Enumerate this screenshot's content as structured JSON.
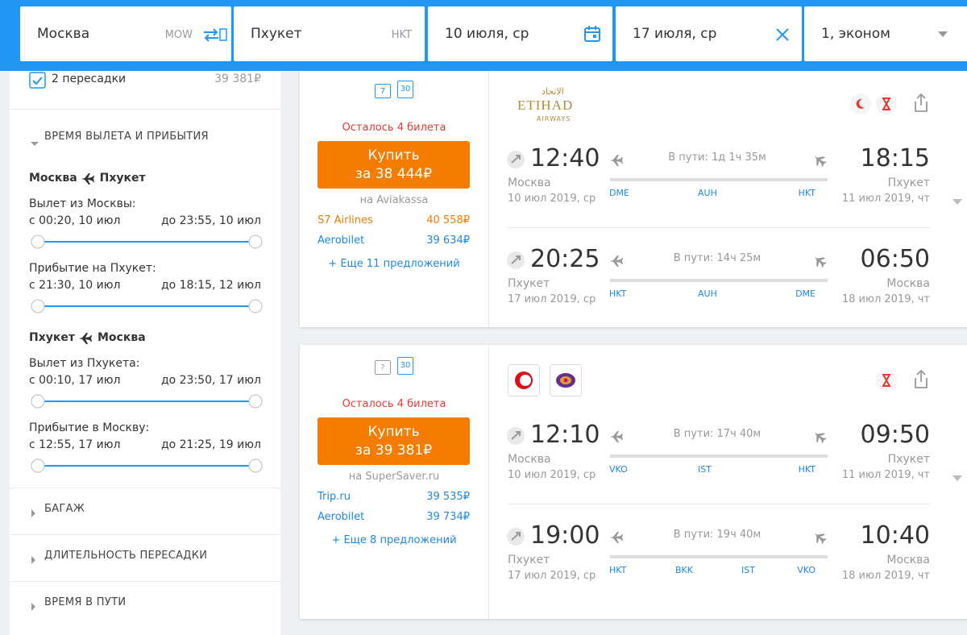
{
  "search": {
    "from": "Москва",
    "from_code": "MOW",
    "to": "Пхукет",
    "to_code": "HKT",
    "depart": "10 июля, ср",
    "return": "17 июля, ср",
    "passengers": "1, эконом"
  },
  "sidebar": {
    "stops": {
      "label": "2 пересадки",
      "price": "39 381₽"
    },
    "time_section": "ВРЕМЯ ВЫЛЕТА И ПРИБЫТИЯ",
    "legs": [
      {
        "from": "Москва",
        "to": "Пхукет",
        "groups": [
          {
            "label": "Вылет из Москвы:",
            "min": "с 00:20, 10 июл",
            "max": "до 23:55, 10 июл"
          },
          {
            "label": "Прибытие на Пхукет:",
            "min": "с 21:30, 10 июл",
            "max": "до 18:15, 12 июл"
          }
        ]
      },
      {
        "from": "Пхукет",
        "to": "Москва",
        "groups": [
          {
            "label": "Вылет из Пхукета:",
            "min": "с 00:10, 17 июл",
            "max": "до 23:50, 17 июл"
          },
          {
            "label": "Прибытие в Москву:",
            "min": "с 12:55, 17 июл",
            "max": "до 21:25, 19 июл"
          }
        ]
      }
    ],
    "sections": [
      "БАГАЖ",
      "ДЛИТЕЛЬНОСТЬ ПЕРЕСАДКИ",
      "ВРЕМЯ В ПУТИ"
    ]
  },
  "results": [
    {
      "baggage": [
        "7",
        "30"
      ],
      "tickets_left": "Осталось 4 билета",
      "buy": "Купить",
      "price": "за 38 444₽",
      "seller": "на Aviakassa",
      "offers": [
        {
          "name": "S7 Airlines",
          "price": "40 558₽",
          "color": "#f57c00"
        },
        {
          "name": "Aerobilet",
          "price": "39 634₽",
          "color": "#1e88e5"
        }
      ],
      "more": "+ Еще 11 предложений",
      "airline": {
        "arabic": "الاتحاد",
        "name": "ETIHAD",
        "sub": "AIRWAYS"
      },
      "segments": [
        {
          "dep_time": "12:40",
          "dep_city": "Москва",
          "dep_date": "10 июл 2019, ср",
          "duration": "В пути: 1д 1ч 35м",
          "arr_time": "18:15",
          "arr_city": "Пхукет",
          "arr_date": "11 июл 2019, чт",
          "airports": [
            "DME",
            "AUH",
            "HKT"
          ]
        },
        {
          "dep_time": "20:25",
          "dep_city": "Пхукет",
          "dep_date": "17 июл 2019, ср",
          "duration": "В пути: 14ч 25м",
          "arr_time": "06:50",
          "arr_city": "Москва",
          "arr_date": "18 июл 2019, чт",
          "airports": [
            "HKT",
            "AUH",
            "DME"
          ]
        }
      ]
    },
    {
      "baggage": [
        "?",
        "30"
      ],
      "tickets_left": "Осталось 4 билета",
      "buy": "Купить",
      "price": "за 39 381₽",
      "seller": "на SuperSaver.ru",
      "offers": [
        {
          "name": "Trip.ru",
          "price": "39 535₽",
          "color": "#1e88e5"
        },
        {
          "name": "Aerobilet",
          "price": "39 734₽",
          "color": "#1e88e5"
        }
      ],
      "more": "+ Еще 8 предложений",
      "segments": [
        {
          "dep_time": "12:10",
          "dep_city": "Москва",
          "dep_date": "10 июл 2019, ср",
          "duration": "В пути: 17ч 40м",
          "arr_time": "09:50",
          "arr_city": "Пхукет",
          "arr_date": "11 июл 2019, чт",
          "airports": [
            "VKO",
            "IST",
            "HKT"
          ]
        },
        {
          "dep_time": "19:00",
          "dep_city": "Пхукет",
          "dep_date": "17 июл 2019, ср",
          "duration": "В пути: 19ч 40м",
          "arr_time": "10:40",
          "arr_city": "Москва",
          "arr_date": "18 июл 2019, чт",
          "airports": [
            "HKT",
            "BKK",
            "IST",
            "VKO"
          ]
        }
      ]
    }
  ]
}
